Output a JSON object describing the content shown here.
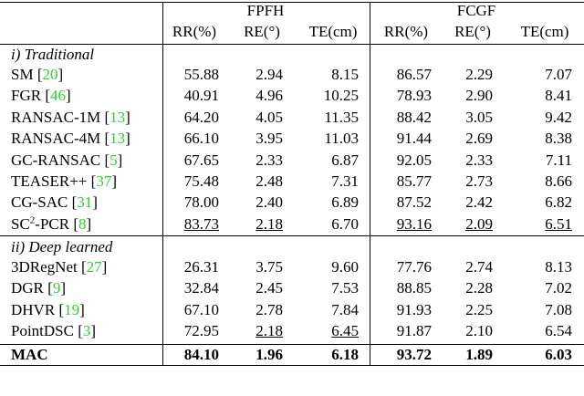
{
  "table": {
    "header": {
      "groups": [
        "FPFH",
        "FCGF"
      ],
      "columns": [
        "RR(%)",
        "RE(°)",
        "TE(cm)",
        "RR(%)",
        "RE(°)",
        "TE(cm)"
      ]
    },
    "sections": [
      {
        "title": "i) Traditional",
        "rows": [
          {
            "method": [
              {
                "text": "SM ["
              },
              {
                "text": "20",
                "cite": true
              },
              {
                "text": "]"
              }
            ],
            "cells": [
              "55.88",
              "2.94",
              "8.15",
              "86.57",
              "2.29",
              "7.07"
            ],
            "underline": []
          },
          {
            "method": [
              {
                "text": "FGR ["
              },
              {
                "text": "46",
                "cite": true
              },
              {
                "text": "]"
              }
            ],
            "cells": [
              "40.91",
              "4.96",
              "10.25",
              "78.93",
              "2.90",
              "8.41"
            ],
            "underline": []
          },
          {
            "method": [
              {
                "text": "RANSAC-1M ["
              },
              {
                "text": "13",
                "cite": true
              },
              {
                "text": "]"
              }
            ],
            "cells": [
              "64.20",
              "4.05",
              "11.35",
              "88.42",
              "3.05",
              "9.42"
            ],
            "underline": []
          },
          {
            "method": [
              {
                "text": "RANSAC-4M ["
              },
              {
                "text": "13",
                "cite": true
              },
              {
                "text": "]"
              }
            ],
            "cells": [
              "66.10",
              "3.95",
              "11.03",
              "91.44",
              "2.69",
              "8.38"
            ],
            "underline": []
          },
          {
            "method": [
              {
                "text": "GC-RANSAC ["
              },
              {
                "text": "5",
                "cite": true
              },
              {
                "text": "]"
              }
            ],
            "cells": [
              "67.65",
              "2.33",
              "6.87",
              "92.05",
              "2.33",
              "7.11"
            ],
            "underline": []
          },
          {
            "method": [
              {
                "text": "TEASER++ ["
              },
              {
                "text": "37",
                "cite": true
              },
              {
                "text": "]"
              }
            ],
            "cells": [
              "75.48",
              "2.48",
              "7.31",
              "85.77",
              "2.73",
              "8.66"
            ],
            "underline": []
          },
          {
            "method": [
              {
                "text": "CG-SAC ["
              },
              {
                "text": "31",
                "cite": true
              },
              {
                "text": "]"
              }
            ],
            "cells": [
              "78.00",
              "2.40",
              "6.89",
              "87.52",
              "2.42",
              "6.82"
            ],
            "underline": []
          },
          {
            "method": [
              {
                "text": "SC"
              },
              {
                "text": "2",
                "sup": true
              },
              {
                "text": "-PCR ["
              },
              {
                "text": "8",
                "cite": true
              },
              {
                "text": "]"
              }
            ],
            "cells": [
              "83.73",
              "2.18",
              "6.70",
              "93.16",
              "2.09",
              "6.51"
            ],
            "underline": [
              0,
              1,
              3,
              4,
              5
            ]
          }
        ]
      },
      {
        "title": "ii) Deep learned",
        "rows": [
          {
            "method": [
              {
                "text": "3DRegNet ["
              },
              {
                "text": "27",
                "cite": true
              },
              {
                "text": "]"
              }
            ],
            "cells": [
              "26.31",
              "3.75",
              "9.60",
              "77.76",
              "2.74",
              "8.13"
            ],
            "underline": []
          },
          {
            "method": [
              {
                "text": "DGR ["
              },
              {
                "text": "9",
                "cite": true
              },
              {
                "text": "]"
              }
            ],
            "cells": [
              "32.84",
              "2.45",
              "7.53",
              "88.85",
              "2.28",
              "7.02"
            ],
            "underline": []
          },
          {
            "method": [
              {
                "text": "DHVR ["
              },
              {
                "text": "19",
                "cite": true
              },
              {
                "text": "]"
              }
            ],
            "cells": [
              "67.10",
              "2.78",
              "7.84",
              "91.93",
              "2.25",
              "7.08"
            ],
            "underline": []
          },
          {
            "method": [
              {
                "text": "PointDSC ["
              },
              {
                "text": "3",
                "cite": true
              },
              {
                "text": "]"
              }
            ],
            "cells": [
              "72.95",
              "2.18",
              "6.45",
              "91.87",
              "2.10",
              "6.54"
            ],
            "underline": [
              1,
              2
            ]
          }
        ]
      }
    ],
    "final": {
      "method": [
        {
          "text": "MAC"
        }
      ],
      "cells": [
        "84.10",
        "1.96",
        "6.18",
        "93.72",
        "1.89",
        "6.03"
      ],
      "bold": true
    }
  }
}
